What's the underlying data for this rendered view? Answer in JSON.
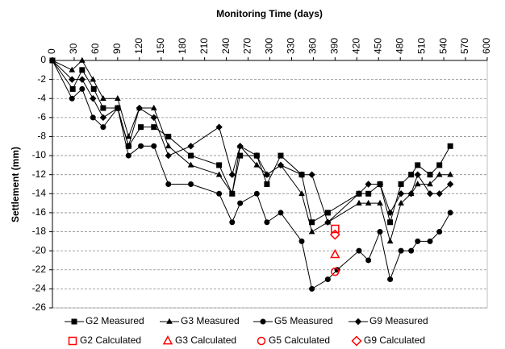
{
  "chart_data": {
    "type": "line",
    "x_label": "Monitoring Time (days)",
    "y_label": "Settlement (mm)",
    "xlim": [
      0,
      600
    ],
    "ylim": [
      -26,
      0
    ],
    "xticks": [
      0,
      30,
      60,
      90,
      120,
      150,
      180,
      210,
      240,
      270,
      300,
      330,
      360,
      390,
      420,
      450,
      480,
      510,
      540,
      570,
      600
    ],
    "yticks": [
      0,
      -2,
      -4,
      -6,
      -8,
      -10,
      -12,
      -14,
      -16,
      -18,
      -20,
      -22,
      -24,
      -26
    ],
    "grid": true,
    "series": [
      {
        "name": "G2 Measured",
        "color": "#000000",
        "marker": "square",
        "line": true,
        "x": [
          0,
          28,
          41,
          57,
          70,
          90,
          105,
          122,
          140,
          160,
          191,
          230,
          248,
          259,
          282,
          296,
          315,
          344,
          358,
          380,
          423,
          436,
          452,
          466,
          481,
          495,
          504,
          521,
          534,
          549
        ],
        "values": [
          0,
          -3,
          -1,
          -3,
          -5,
          -5,
          -9,
          -7,
          -7,
          -8,
          -10,
          -11,
          -14,
          -10,
          -10,
          -13,
          -10,
          -12,
          -17,
          -16,
          -14,
          -14,
          -13,
          -17,
          -13,
          -12,
          -11,
          -12,
          -11,
          -9
        ]
      },
      {
        "name": "G3 Measured",
        "color": "#000000",
        "marker": "triangle",
        "line": true,
        "x": [
          0,
          27,
          41,
          56,
          70,
          90,
          105,
          120,
          140,
          160,
          191,
          230,
          248,
          259,
          282,
          296,
          315,
          344,
          358,
          380,
          423,
          436,
          452,
          466,
          481,
          495,
          504,
          521,
          534,
          549
        ],
        "values": [
          0,
          -1,
          0,
          -2,
          -4,
          -4,
          -8,
          -5,
          -5,
          -9,
          -11,
          -12,
          -14,
          -9,
          -11,
          -12,
          -11,
          -14,
          -18,
          -17,
          -15,
          -15,
          -15,
          -19,
          -15,
          -14,
          -13,
          -13,
          -12,
          -12
        ]
      },
      {
        "name": "G5 Measured",
        "color": "#000000",
        "marker": "circle",
        "line": true,
        "x": [
          0,
          27,
          41,
          56,
          70,
          90,
          105,
          122,
          140,
          160,
          191,
          230,
          248,
          259,
          282,
          296,
          315,
          344,
          358,
          380,
          393,
          423,
          436,
          452,
          466,
          481,
          495,
          504,
          521,
          534,
          549
        ],
        "values": [
          0,
          -4,
          -3,
          -6,
          -7,
          -5,
          -10,
          -9,
          -9,
          -13,
          -13,
          -14,
          -17,
          -15,
          -14,
          -17,
          -16,
          -19,
          -24,
          -23,
          -22,
          -20,
          -21,
          -18,
          -23,
          -20,
          -20,
          -19,
          -19,
          -18,
          -16
        ]
      },
      {
        "name": "G9 Measured",
        "color": "#000000",
        "marker": "diamond",
        "line": true,
        "x": [
          0,
          27,
          41,
          56,
          70,
          90,
          105,
          120,
          140,
          160,
          191,
          230,
          248,
          259,
          282,
          296,
          315,
          344,
          358,
          380,
          423,
          436,
          452,
          466,
          481,
          495,
          504,
          521,
          534,
          549
        ],
        "values": [
          0,
          -2,
          -2,
          -4,
          -6,
          -5,
          -9,
          -5,
          -6,
          -10,
          -9,
          -7,
          -12,
          -9,
          -10,
          -12,
          -11,
          -12,
          -12,
          -17,
          -14,
          -13,
          -13,
          -16,
          -14,
          -14,
          -12,
          -14,
          -14,
          -13
        ]
      },
      {
        "name": "G2 Calculated",
        "color": "#ff0000",
        "marker": "square",
        "line": false,
        "x": [
          390
        ],
        "values": [
          -17.7
        ]
      },
      {
        "name": "G3 Calculated",
        "color": "#ff0000",
        "marker": "triangle",
        "line": false,
        "x": [
          390
        ],
        "values": [
          -20.4
        ]
      },
      {
        "name": "G5 Calculated",
        "color": "#ff0000",
        "marker": "circle",
        "line": false,
        "x": [
          390
        ],
        "values": [
          -22.2
        ]
      },
      {
        "name": "G9 Calculated",
        "color": "#ff0000",
        "marker": "diamond",
        "line": false,
        "x": [
          390
        ],
        "values": [
          -18.3
        ]
      }
    ]
  }
}
